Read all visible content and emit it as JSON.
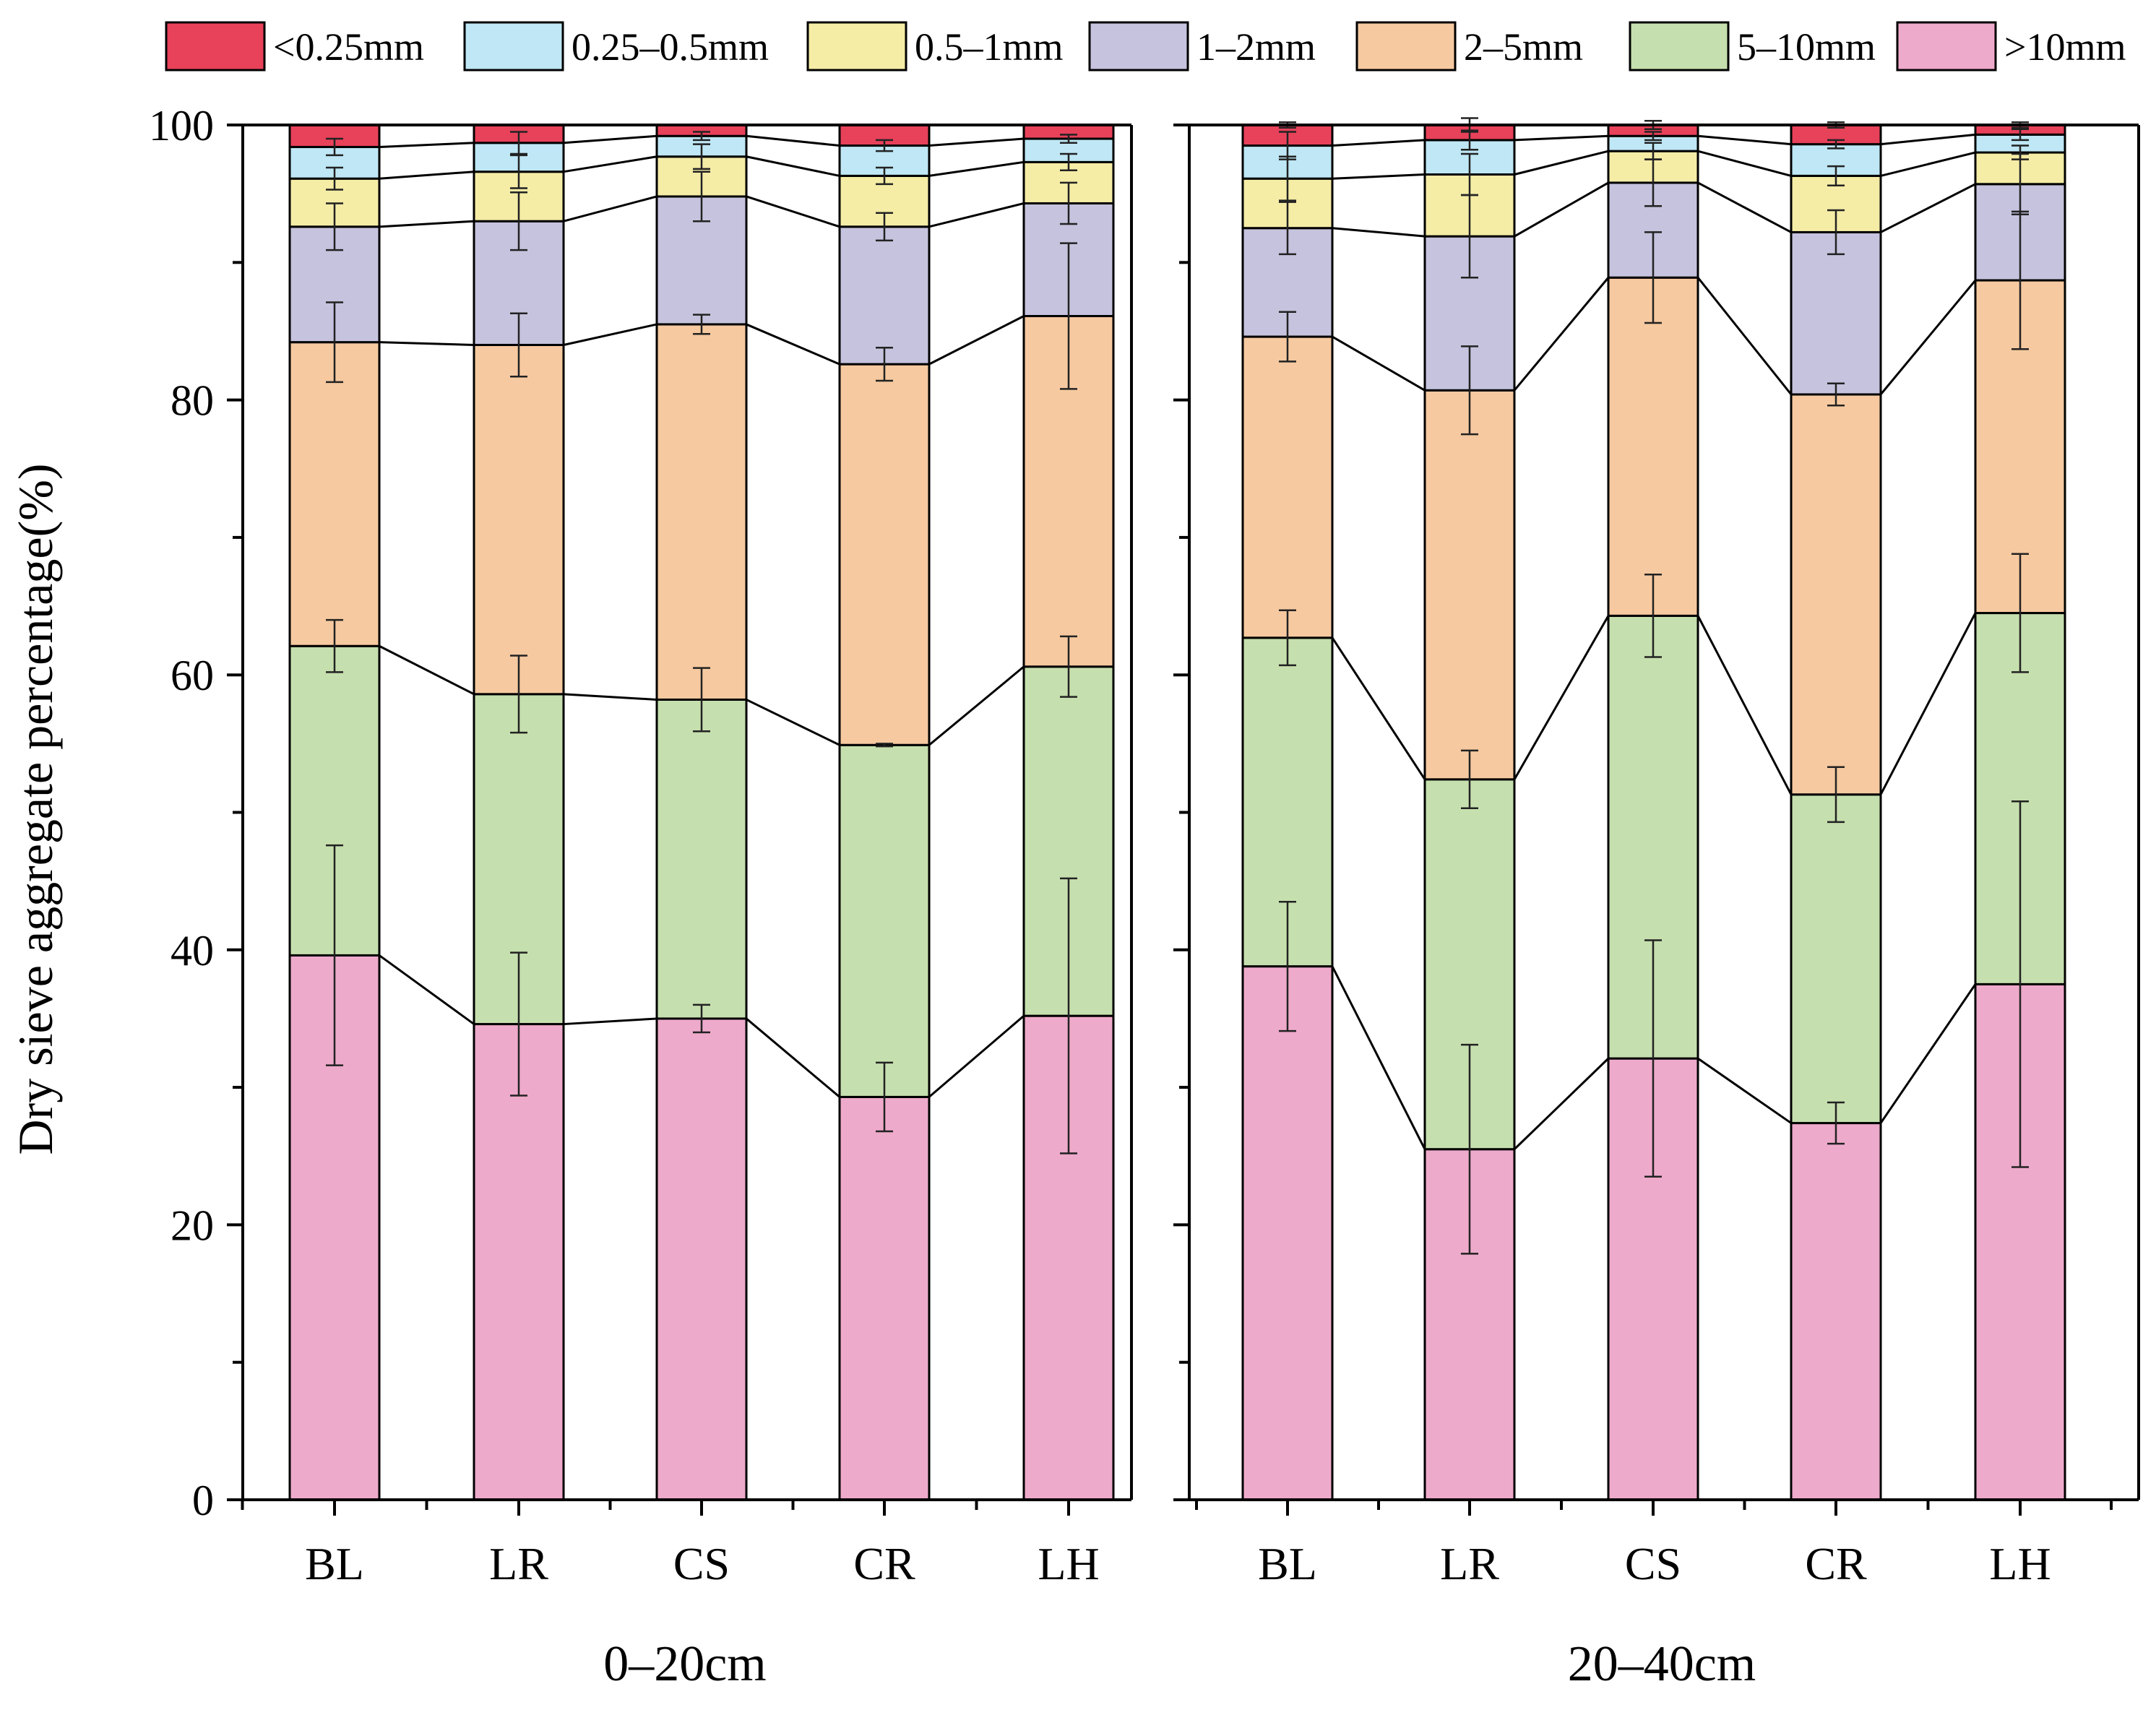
{
  "chart_data": {
    "type": "bar",
    "stacked": true,
    "ylabel": "Dry sieve aggregate percentage(%)",
    "ylim": [
      0,
      100
    ],
    "yticks": [
      0,
      20,
      40,
      60,
      80,
      100
    ],
    "categories": [
      "BL",
      "LR",
      "CS",
      "CR",
      "LH"
    ],
    "legend": [
      {
        "name": "<0.25mm",
        "color": "#e8415a"
      },
      {
        "name": "0.25–0.5mm",
        "color": "#bfe7f5"
      },
      {
        "name": "0.5–1mm",
        "color": "#f5eca6"
      },
      {
        "name": "1–2mm",
        "color": "#c6c3de"
      },
      {
        "name": "2–5mm",
        "color": "#f6c9a0"
      },
      {
        "name": "5–10mm",
        "color": "#c6dfae"
      },
      {
        "name": ">10mm",
        "color": "#eeaacb"
      }
    ],
    "panels": [
      {
        "xlabel": "0–20cm",
        "cumulative": [
          {
            "name": ">10mm",
            "values": [
              39.6,
              34.6,
              35.0,
              29.3,
              35.2
            ],
            "errors": [
              8.0,
              5.2,
              1.0,
              2.5,
              10.0
            ]
          },
          {
            "name": "5–10mm",
            "values": [
              62.1,
              58.6,
              58.2,
              54.9,
              60.6
            ],
            "errors": [
              1.9,
              2.8,
              2.3,
              0.1,
              2.2
            ]
          },
          {
            "name": "2–5mm",
            "values": [
              84.2,
              84.0,
              85.5,
              82.6,
              86.1
            ],
            "errors": [
              2.9,
              2.3,
              0.7,
              1.2,
              5.3
            ]
          },
          {
            "name": "1–2mm",
            "values": [
              92.6,
              93.0,
              94.8,
              92.6,
              94.3
            ],
            "errors": [
              1.7,
              2.1,
              1.8,
              1.0,
              1.5
            ]
          },
          {
            "name": "0.5–1mm",
            "values": [
              96.1,
              96.6,
              97.7,
              96.3,
              97.3
            ],
            "errors": [
              0.8,
              1.2,
              0.9,
              0.6,
              0.6
            ]
          },
          {
            "name": "0.25–0.5mm",
            "values": [
              98.4,
              98.7,
              99.2,
              98.5,
              99.0
            ],
            "errors": [
              0.6,
              0.8,
              0.3,
              0.4,
              0.3
            ]
          },
          {
            "name": "<0.25mm",
            "values": [
              100,
              100,
              100,
              100,
              100
            ],
            "errors": [
              0,
              0,
              0,
              0,
              0
            ]
          }
        ]
      },
      {
        "xlabel": "20–40cm",
        "cumulative": [
          {
            "name": ">10mm",
            "values": [
              38.8,
              25.5,
              32.1,
              27.4,
              37.5
            ],
            "errors": [
              4.7,
              7.6,
              8.6,
              1.5,
              13.3
            ]
          },
          {
            "name": "5–10mm",
            "values": [
              62.7,
              52.4,
              64.3,
              51.3,
              64.5
            ],
            "errors": [
              2.0,
              2.1,
              3.0,
              2.0,
              4.3
            ]
          },
          {
            "name": "2–5mm",
            "values": [
              84.6,
              80.7,
              88.9,
              80.4,
              88.7
            ],
            "errors": [
              1.8,
              3.2,
              3.3,
              0.8,
              5.0
            ]
          },
          {
            "name": "1–2mm",
            "values": [
              92.5,
              91.9,
              95.8,
              92.2,
              95.7
            ],
            "errors": [
              1.9,
              3.0,
              1.7,
              1.6,
              2.2
            ]
          },
          {
            "name": "0.5–1mm",
            "values": [
              96.1,
              96.4,
              98.1,
              96.3,
              98.0
            ],
            "errors": [
              1.6,
              1.5,
              0.6,
              0.7,
              0.5
            ]
          },
          {
            "name": "0.25–0.5mm",
            "values": [
              98.5,
              98.9,
              99.2,
              98.6,
              99.3
            ],
            "errors": [
              1.0,
              0.7,
              0.3,
              0.3,
              0.4
            ]
          },
          {
            "name": "<0.25mm",
            "values": [
              100,
              100,
              100,
              100,
              100
            ],
            "errors": [
              0.2,
              0.5,
              0.3,
              0.2,
              0.2
            ]
          }
        ]
      }
    ]
  }
}
